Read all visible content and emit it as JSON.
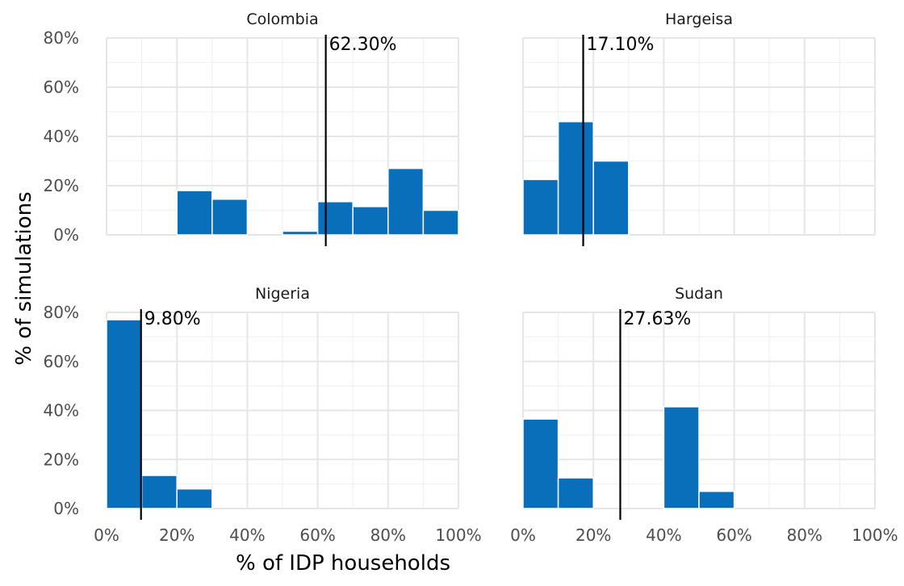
{
  "chart_data": {
    "type": "bar",
    "facet_type": "histogram-facets",
    "xlabel": "% of IDP households",
    "ylabel": "% of simulations",
    "xlim": [
      0,
      100
    ],
    "ylim": [
      0,
      80
    ],
    "x_ticks": [
      "0%",
      "20%",
      "40%",
      "60%",
      "80%",
      "100%"
    ],
    "y_ticks": [
      "0%",
      "20%",
      "40%",
      "60%",
      "80%"
    ],
    "bin_width": 10,
    "bar_color": "#0a6fba",
    "panels": [
      {
        "title": "Colombia",
        "bins": [
          {
            "x0": 20,
            "value": 18
          },
          {
            "x0": 30,
            "value": 14.5
          },
          {
            "x0": 50,
            "value": 1.5
          },
          {
            "x0": 60,
            "value": 13.5
          },
          {
            "x0": 70,
            "value": 11.5
          },
          {
            "x0": 80,
            "value": 27
          },
          {
            "x0": 90,
            "value": 10
          }
        ],
        "reference": {
          "x": 62.3,
          "label": "62.30%"
        }
      },
      {
        "title": "Hargeisa",
        "bins": [
          {
            "x0": 0,
            "value": 22.5
          },
          {
            "x0": 10,
            "value": 46
          },
          {
            "x0": 20,
            "value": 30
          }
        ],
        "reference": {
          "x": 17.1,
          "label": "17.10%"
        }
      },
      {
        "title": "Nigeria",
        "bins": [
          {
            "x0": 0,
            "value": 77
          },
          {
            "x0": 10,
            "value": 13.5
          },
          {
            "x0": 20,
            "value": 8
          }
        ],
        "reference": {
          "x": 9.8,
          "label": "9.80%"
        }
      },
      {
        "title": "Sudan",
        "bins": [
          {
            "x0": 0,
            "value": 36.5
          },
          {
            "x0": 10,
            "value": 12.5
          },
          {
            "x0": 40,
            "value": 41.5
          },
          {
            "x0": 50,
            "value": 7
          }
        ],
        "reference": {
          "x": 27.63,
          "label": "27.63%"
        }
      }
    ]
  }
}
